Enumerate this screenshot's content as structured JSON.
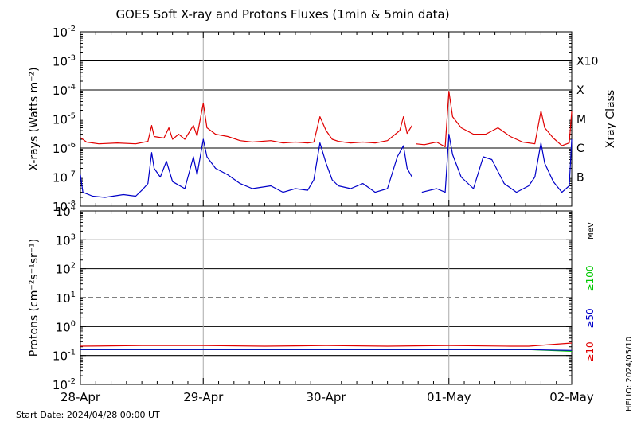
{
  "title": "GOES Soft X-ray and Protons Fluxes   (1min & 5min data)",
  "footer": {
    "start_date": "Start Date: 2024/04/28 00:00 UT",
    "credit": "HELIO: 2024/05/10"
  },
  "chart_data": [
    {
      "type": "line",
      "ylabel": "X-rays (Watts m⁻²)",
      "yscale": "log",
      "ylim": [
        1e-08,
        0.01
      ],
      "ytick_exponents": [
        "-2",
        "-3",
        "-4",
        "-5",
        "-6",
        "-7",
        "-8"
      ],
      "ytick_base": "10",
      "right_axis_title": "Xray Class",
      "class_labels": [
        "X10",
        "X",
        "M",
        "C",
        "B"
      ],
      "x_days": [
        "28-Apr",
        "29-Apr",
        "30-Apr",
        "01-May",
        "02-May"
      ],
      "series_colors": [
        "#e00000",
        "#0000c8"
      ],
      "series": [
        {
          "color": "#e00000",
          "segments": [
            [
              [
                0.0,
                2.3e-06
              ],
              [
                0.05,
                1.6e-06
              ],
              [
                0.15,
                1.4e-06
              ],
              [
                0.3,
                1.5e-06
              ],
              [
                0.45,
                1.4e-06
              ],
              [
                0.55,
                1.7e-06
              ],
              [
                0.58,
                6e-06
              ],
              [
                0.6,
                2.5e-06
              ],
              [
                0.68,
                2.2e-06
              ],
              [
                0.72,
                5e-06
              ],
              [
                0.75,
                2e-06
              ],
              [
                0.8,
                3e-06
              ],
              [
                0.85,
                2e-06
              ],
              [
                0.92,
                6e-06
              ],
              [
                0.95,
                2.6e-06
              ],
              [
                1.0,
                3.5e-05
              ],
              [
                1.03,
                5e-06
              ],
              [
                1.1,
                3e-06
              ],
              [
                1.2,
                2.5e-06
              ],
              [
                1.3,
                1.8e-06
              ],
              [
                1.4,
                1.6e-06
              ],
              [
                1.55,
                1.8e-06
              ],
              [
                1.65,
                1.5e-06
              ],
              [
                1.75,
                1.6e-06
              ],
              [
                1.85,
                1.5e-06
              ],
              [
                1.9,
                1.6e-06
              ],
              [
                1.95,
                1.2e-05
              ],
              [
                2.0,
                4e-06
              ],
              [
                2.05,
                2e-06
              ],
              [
                2.1,
                1.7e-06
              ],
              [
                2.2,
                1.5e-06
              ],
              [
                2.3,
                1.6e-06
              ],
              [
                2.4,
                1.5e-06
              ],
              [
                2.5,
                1.8e-06
              ],
              [
                2.6,
                4e-06
              ],
              [
                2.63,
                1.2e-05
              ],
              [
                2.66,
                3.2e-06
              ],
              [
                2.7,
                6e-06
              ]
            ],
            [
              [
                2.73,
                1.4e-06
              ],
              [
                2.8,
                1.3e-06
              ],
              [
                2.9,
                1.6e-06
              ],
              [
                2.97,
                1.1e-06
              ],
              [
                3.0,
                9e-05
              ],
              [
                3.03,
                1.2e-05
              ],
              [
                3.1,
                5e-06
              ],
              [
                3.2,
                3e-06
              ],
              [
                3.3,
                3e-06
              ],
              [
                3.4,
                5e-06
              ],
              [
                3.5,
                2.5e-06
              ],
              [
                3.6,
                1.6e-06
              ],
              [
                3.7,
                1.4e-06
              ],
              [
                3.75,
                1.9e-05
              ],
              [
                3.78,
                5e-06
              ],
              [
                3.85,
                2.2e-06
              ],
              [
                3.92,
                1.2e-06
              ],
              [
                3.98,
                1.5e-06
              ],
              [
                4.0,
                1.8e-05
              ]
            ]
          ]
        },
        {
          "color": "#0000c8",
          "segments": [
            [
              [
                0.0,
                1.2e-07
              ],
              [
                0.02,
                3e-08
              ],
              [
                0.1,
                2.2e-08
              ],
              [
                0.2,
                2e-08
              ],
              [
                0.35,
                2.5e-08
              ],
              [
                0.45,
                2.2e-08
              ],
              [
                0.5,
                3.5e-08
              ],
              [
                0.55,
                6e-08
              ],
              [
                0.58,
                7e-07
              ],
              [
                0.6,
                2e-07
              ],
              [
                0.65,
                1e-07
              ],
              [
                0.7,
                3.5e-07
              ],
              [
                0.75,
                7e-08
              ],
              [
                0.85,
                4e-08
              ],
              [
                0.92,
                5e-07
              ],
              [
                0.95,
                1.2e-07
              ],
              [
                1.0,
                2e-06
              ],
              [
                1.03,
                5e-07
              ],
              [
                1.1,
                2e-07
              ],
              [
                1.2,
                1.2e-07
              ],
              [
                1.3,
                6e-08
              ],
              [
                1.4,
                4e-08
              ],
              [
                1.55,
                5e-08
              ],
              [
                1.65,
                3e-08
              ],
              [
                1.75,
                4e-08
              ],
              [
                1.85,
                3.5e-08
              ],
              [
                1.9,
                8e-08
              ],
              [
                1.95,
                1.5e-06
              ],
              [
                2.0,
                3e-07
              ],
              [
                2.05,
                8e-08
              ],
              [
                2.1,
                5e-08
              ],
              [
                2.2,
                4e-08
              ],
              [
                2.3,
                6e-08
              ],
              [
                2.4,
                3e-08
              ],
              [
                2.5,
                4e-08
              ],
              [
                2.58,
                5e-07
              ],
              [
                2.63,
                1.2e-06
              ],
              [
                2.66,
                2e-07
              ],
              [
                2.7,
                1e-07
              ]
            ],
            [
              [
                2.78,
                3e-08
              ],
              [
                2.9,
                4e-08
              ],
              [
                2.97,
                3e-08
              ],
              [
                3.0,
                3e-06
              ],
              [
                3.03,
                6e-07
              ],
              [
                3.1,
                1e-07
              ],
              [
                3.2,
                4e-08
              ],
              [
                3.28,
                5e-07
              ],
              [
                3.35,
                4e-07
              ],
              [
                3.45,
                6e-08
              ],
              [
                3.55,
                3e-08
              ],
              [
                3.65,
                5e-08
              ],
              [
                3.7,
                1e-07
              ],
              [
                3.75,
                1.5e-06
              ],
              [
                3.78,
                3e-07
              ],
              [
                3.85,
                7e-08
              ],
              [
                3.92,
                3e-08
              ],
              [
                3.98,
                5e-08
              ],
              [
                4.0,
                2e-06
              ]
            ]
          ]
        }
      ]
    },
    {
      "type": "line",
      "ylabel": "Protons (cm⁻²s⁻¹sr⁻¹)",
      "yscale": "log",
      "ylim": [
        0.01,
        10000.0
      ],
      "ytick_exponents": [
        "4",
        "3",
        "2",
        "1",
        "0",
        "-1",
        "-2"
      ],
      "ytick_base": "10",
      "dashed_level": 10,
      "solid_level": 0.1,
      "x_days": [
        "28-Apr",
        "29-Apr",
        "30-Apr",
        "01-May",
        "02-May"
      ],
      "energy_unit": "MeV",
      "energy_labels": [
        {
          "label": "≥10",
          "color": "#e00000"
        },
        {
          "label": "≥50",
          "color": "#0000c8"
        },
        {
          "label": "≥100",
          "color": "#00c800"
        }
      ],
      "series": [
        {
          "name": "≥10",
          "color": "#e00000",
          "values": [
            [
              0.0,
              0.21
            ],
            [
              0.5,
              0.22
            ],
            [
              1.0,
              0.22
            ],
            [
              1.5,
              0.21
            ],
            [
              2.0,
              0.22
            ],
            [
              2.5,
              0.21
            ],
            [
              3.0,
              0.22
            ],
            [
              3.5,
              0.21
            ],
            [
              3.65,
              0.21
            ],
            [
              4.0,
              0.27
            ]
          ]
        },
        {
          "name": "≥50",
          "color": "#0000c8",
          "values": [
            [
              0.0,
              0.16
            ],
            [
              1.0,
              0.16
            ],
            [
              2.0,
              0.16
            ],
            [
              3.0,
              0.16
            ],
            [
              3.65,
              0.16
            ],
            [
              4.0,
              0.15
            ]
          ]
        },
        {
          "name": "≥100",
          "color": "#00c800",
          "values": [
            [
              0.0,
              0.16
            ],
            [
              1.0,
              0.16
            ],
            [
              2.0,
              0.16
            ],
            [
              3.0,
              0.16
            ],
            [
              3.65,
              0.16
            ],
            [
              4.0,
              0.14
            ]
          ]
        }
      ]
    }
  ]
}
